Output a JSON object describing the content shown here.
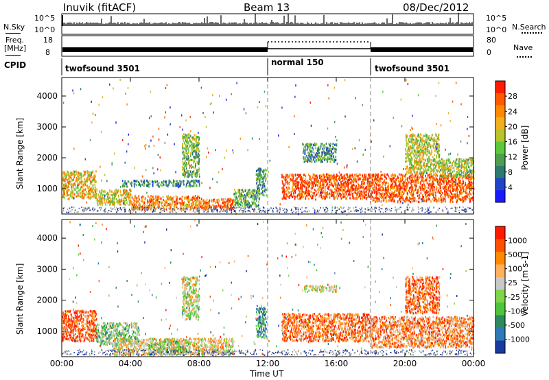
{
  "header": {
    "title": "Inuvik (fitACF)",
    "beam": "Beam 13",
    "date": "08/Dec/2012"
  },
  "sky_panel": {
    "left_label": "N.Sky",
    "right_label": "N.Search",
    "left_ticks": [
      "10^5",
      "10^0"
    ],
    "right_ticks": [
      "10^5",
      "10^0"
    ]
  },
  "freq_panel": {
    "left_label_top": "Freq.",
    "left_label_bottom": "[MHz]",
    "right_label": "Nave",
    "left_ticks": [
      "18",
      "8"
    ],
    "right_ticks": [
      "80",
      "0"
    ]
  },
  "cpid": {
    "label": "CPID",
    "segments": [
      {
        "name": "twofsound 3501",
        "start_h": 0,
        "end_h": 12
      },
      {
        "name": "normal 150",
        "start_h": 12,
        "end_h": 18
      },
      {
        "name": "twofsound 3501",
        "start_h": 18,
        "end_h": 24
      }
    ]
  },
  "time_axis": {
    "label": "Time UT",
    "ticks": [
      "00:00",
      "04:00",
      "08:00",
      "12:00",
      "16:00",
      "20:00",
      "00:00"
    ]
  },
  "chart_data": [
    {
      "type": "heatmap",
      "panel": "power",
      "ylabel": "Slant Range [km]",
      "yticks": [
        1000,
        2000,
        3000,
        4000
      ],
      "xlim_hours": [
        0,
        24
      ],
      "ylim_km": [
        180,
        4600
      ],
      "colorbar_label": "Power [dB]",
      "colorbar_ticks": [
        "28",
        "24",
        "20",
        "16",
        "12",
        "8",
        "4"
      ],
      "colors": [
        "#1a1aff",
        "#2244c8",
        "#2e7a6e",
        "#4e9e4e",
        "#5cc93a",
        "#b7c42a",
        "#f0b020",
        "#ff8a00",
        "#ff5a00",
        "#ff1a00"
      ],
      "echo_regions": [
        {
          "t0": 0.0,
          "t1": 2.0,
          "r0": 700,
          "r1": 1600,
          "level": 0.65
        },
        {
          "t0": 2.0,
          "t1": 4.0,
          "r0": 500,
          "r1": 1000,
          "level": 0.6
        },
        {
          "t0": 4.0,
          "t1": 8.0,
          "r0": 350,
          "r1": 800,
          "level": 0.75
        },
        {
          "t0": 8.0,
          "t1": 10.0,
          "r0": 350,
          "r1": 700,
          "level": 0.85
        },
        {
          "t0": 10.0,
          "t1": 11.5,
          "r0": 450,
          "r1": 1000,
          "level": 0.4
        },
        {
          "t0": 3.5,
          "t1": 8.0,
          "r0": 1100,
          "r1": 1300,
          "level": 0.3
        },
        {
          "t0": 7.0,
          "t1": 8.0,
          "r0": 1400,
          "r1": 2800,
          "level": 0.45
        },
        {
          "t0": 11.3,
          "t1": 11.9,
          "r0": 800,
          "r1": 1700,
          "level": 0.35
        },
        {
          "t0": 12.8,
          "t1": 18.0,
          "r0": 700,
          "r1": 1500,
          "level": 0.88
        },
        {
          "t0": 18.0,
          "t1": 24.0,
          "r0": 600,
          "r1": 1500,
          "level": 0.85
        },
        {
          "t0": 14.0,
          "t1": 16.0,
          "r0": 1900,
          "r1": 2500,
          "level": 0.35
        },
        {
          "t0": 20.0,
          "t1": 22.0,
          "r0": 1500,
          "r1": 2800,
          "level": 0.55
        },
        {
          "t0": 22.0,
          "t1": 24.0,
          "r0": 1400,
          "r1": 2000,
          "level": 0.5
        }
      ]
    },
    {
      "type": "heatmap",
      "panel": "velocity",
      "ylabel": "Slant Range [km]",
      "yticks": [
        1000,
        2000,
        3000,
        4000
      ],
      "xlim_hours": [
        0,
        24
      ],
      "ylim_km": [
        180,
        4600
      ],
      "colorbar_label": "Velocity [m s-1]",
      "colorbar_ticks": [
        "1000",
        "500",
        "100",
        "25",
        "-25",
        "-100",
        "-500",
        "-1000"
      ],
      "colors": [
        "#1a3a9e",
        "#2e7ab4",
        "#2e8a5e",
        "#4fc43a",
        "#7fd44a",
        "#c8c8c8",
        "#ffb060",
        "#ff8a00",
        "#ff5000",
        "#ff1a00"
      ],
      "echo_regions": [
        {
          "t0": 0.0,
          "t1": 2.0,
          "r0": 700,
          "r1": 1700,
          "level": 0.85
        },
        {
          "t0": 2.0,
          "t1": 4.5,
          "r0": 600,
          "r1": 1300,
          "level": 0.4
        },
        {
          "t0": 3.0,
          "t1": 10.0,
          "r0": 250,
          "r1": 800,
          "level": 0.6
        },
        {
          "t0": 5.0,
          "t1": 7.5,
          "r0": 350,
          "r1": 700,
          "level": 0.45
        },
        {
          "t0": 7.0,
          "t1": 8.0,
          "r0": 1400,
          "r1": 2800,
          "level": 0.5
        },
        {
          "t0": 11.3,
          "t1": 11.9,
          "r0": 800,
          "r1": 1800,
          "level": 0.25
        },
        {
          "t0": 12.8,
          "t1": 18.0,
          "r0": 700,
          "r1": 1600,
          "level": 0.8
        },
        {
          "t0": 18.0,
          "t1": 24.0,
          "r0": 500,
          "r1": 1500,
          "level": 0.75
        },
        {
          "t0": 14.0,
          "t1": 16.0,
          "r0": 2300,
          "r1": 2500,
          "level": 0.55
        },
        {
          "t0": 20.0,
          "t1": 22.0,
          "r0": 1600,
          "r1": 2800,
          "level": 0.8
        }
      ]
    }
  ]
}
